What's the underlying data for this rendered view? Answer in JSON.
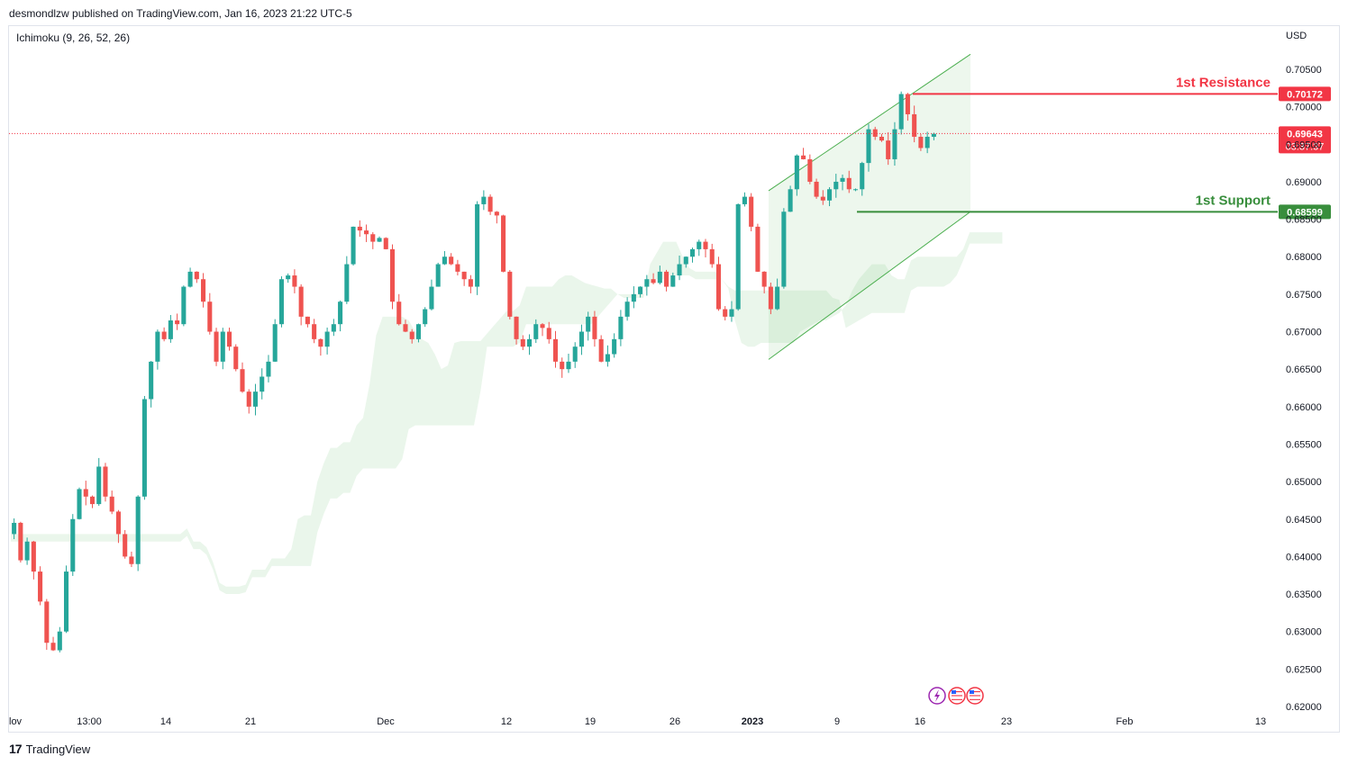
{
  "header": {
    "published_by": "desmondlzw published on TradingView.com, Jan 16, 2023 21:22 UTC-5"
  },
  "indicator": {
    "label": "Ichimoku (9, 26, 52, 26)"
  },
  "footer": {
    "logo_mark": "17",
    "brand": "TradingView"
  },
  "colors": {
    "bull": "#26a69a",
    "bear": "#ef5350",
    "resistance": "#f23645",
    "support": "#388e3c",
    "channel": "#4caf50",
    "cloud_bull": "#e8f5e9",
    "cloud_bear": "#fde8e8"
  },
  "event_icons": [
    "lightning-icon",
    "us-flag-icon",
    "us-flag-icon"
  ],
  "chart_data": {
    "type": "candlestick",
    "currency": "USD",
    "ylim": [
      0.62,
      0.708
    ],
    "y_ticks": [
      "0.70500",
      "0.70000",
      "0.69500",
      "0.69000",
      "0.68500",
      "0.68000",
      "0.67500",
      "0.67000",
      "0.66500",
      "0.66000",
      "0.65500",
      "0.65000",
      "0.64500",
      "0.64000",
      "0.63500",
      "0.63000",
      "0.62500",
      "0.62000"
    ],
    "x_ticks": [
      "lov",
      "13:00",
      "14",
      "21",
      "Dec",
      "12",
      "19",
      "26",
      "2023",
      "9",
      "16",
      "23",
      "Feb",
      "13"
    ],
    "last_price": {
      "value": "0.69643",
      "countdown": "03:37:37"
    },
    "annotations": {
      "resistance": {
        "label": "1st Resistance",
        "value": "0.70172"
      },
      "support": {
        "label": "1st Support",
        "value": "0.68599"
      }
    },
    "price_path": [
      0.643,
      0.6445,
      0.6395,
      0.642,
      0.638,
      0.634,
      0.6285,
      0.6275,
      0.63,
      0.638,
      0.645,
      0.649,
      0.648,
      0.647,
      0.652,
      0.648,
      0.646,
      0.643,
      0.64,
      0.639,
      0.648,
      0.661,
      0.666,
      0.67,
      0.669,
      0.6715,
      0.671,
      0.676,
      0.678,
      0.677,
      0.674,
      0.67,
      0.666,
      0.67,
      0.668,
      0.665,
      0.662,
      0.66,
      0.662,
      0.664,
      0.666,
      0.671,
      0.677,
      0.6775,
      0.676,
      0.672,
      0.671,
      0.669,
      0.668,
      0.67,
      0.671,
      0.674,
      0.679,
      0.684,
      0.6835,
      0.683,
      0.682,
      0.6825,
      0.681,
      0.674,
      0.671,
      0.67,
      0.669,
      0.671,
      0.673,
      0.676,
      0.679,
      0.68,
      0.679,
      0.678,
      0.677,
      0.676,
      0.687,
      0.688,
      0.686,
      0.6855,
      0.678,
      0.672,
      0.669,
      0.668,
      0.669,
      0.671,
      0.6705,
      0.669,
      0.666,
      0.665,
      0.666,
      0.668,
      0.67,
      0.672,
      0.669,
      0.666,
      0.667,
      0.669,
      0.672,
      0.674,
      0.675,
      0.676,
      0.677,
      0.6765,
      0.678,
      0.676,
      0.6775,
      0.679,
      0.68,
      0.681,
      0.682,
      0.681,
      0.679,
      0.673,
      0.672,
      0.673,
      0.687,
      0.688,
      0.684,
      0.678,
      0.676,
      0.673,
      0.676,
      0.686,
      0.689,
      0.6935,
      0.693,
      0.69,
      0.688,
      0.6875,
      0.689,
      0.69,
      0.6905,
      0.689,
      0.689,
      0.6925,
      0.697,
      0.696,
      0.6955,
      0.693,
      0.697,
      0.7017,
      0.699,
      0.696,
      0.6945,
      0.696,
      0.6964
    ],
    "series": [
      {
        "name": "Ichimoku (9, 26, 52, 26)"
      }
    ]
  }
}
